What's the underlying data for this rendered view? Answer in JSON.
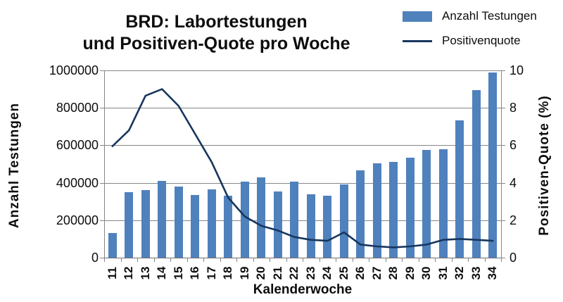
{
  "title": {
    "line1": "BRD: Labortestungen",
    "line2": "und Positiven-Quote pro Woche"
  },
  "legend": {
    "items": [
      {
        "label": "Anzahl Testungen",
        "type": "bar",
        "color": "#4f81bd"
      },
      {
        "label": "Positivenquote",
        "type": "line",
        "color": "#17365d"
      }
    ]
  },
  "colors": {
    "bar": "#4f81bd",
    "line": "#17365d",
    "grid": "#868686",
    "text": "#0d0d0d"
  },
  "chart_data": {
    "type": "bar+line",
    "title": "BRD: Labortestungen und Positiven-Quote pro Woche",
    "xlabel": "Kalenderwoche",
    "ylabel_left": "Anzahl Testungen",
    "ylabel_right": "Positiven-Quote (%)",
    "grid": true,
    "legend_position": "top-right",
    "categories": [
      11,
      12,
      13,
      14,
      15,
      16,
      17,
      18,
      19,
      20,
      21,
      22,
      23,
      24,
      25,
      26,
      27,
      28,
      29,
      30,
      31,
      32,
      33,
      34
    ],
    "left_axis": {
      "min": 0,
      "max": 1000000,
      "ticks": [
        0,
        200000,
        400000,
        600000,
        800000,
        1000000
      ]
    },
    "right_axis": {
      "min": 0,
      "max": 10,
      "ticks": [
        0,
        2,
        4,
        6,
        8,
        10
      ]
    },
    "series": [
      {
        "name": "Anzahl Testungen",
        "type": "bar",
        "axis": "left",
        "color": "#4f81bd",
        "values": [
          130000,
          350000,
          360000,
          410000,
          380000,
          335000,
          365000,
          330000,
          405000,
          430000,
          355000,
          405000,
          340000,
          330000,
          390000,
          465000,
          505000,
          510000,
          535000,
          575000,
          580000,
          735000,
          895000,
          990000
        ]
      },
      {
        "name": "Positivenquote",
        "type": "line",
        "axis": "right",
        "color": "#17365d",
        "values": [
          5.95,
          6.8,
          8.65,
          9.0,
          8.1,
          6.6,
          5.1,
          3.2,
          2.2,
          1.7,
          1.45,
          1.1,
          0.95,
          0.9,
          1.35,
          0.7,
          0.6,
          0.55,
          0.6,
          0.7,
          0.95,
          1.0,
          0.95,
          0.9
        ]
      }
    ]
  }
}
